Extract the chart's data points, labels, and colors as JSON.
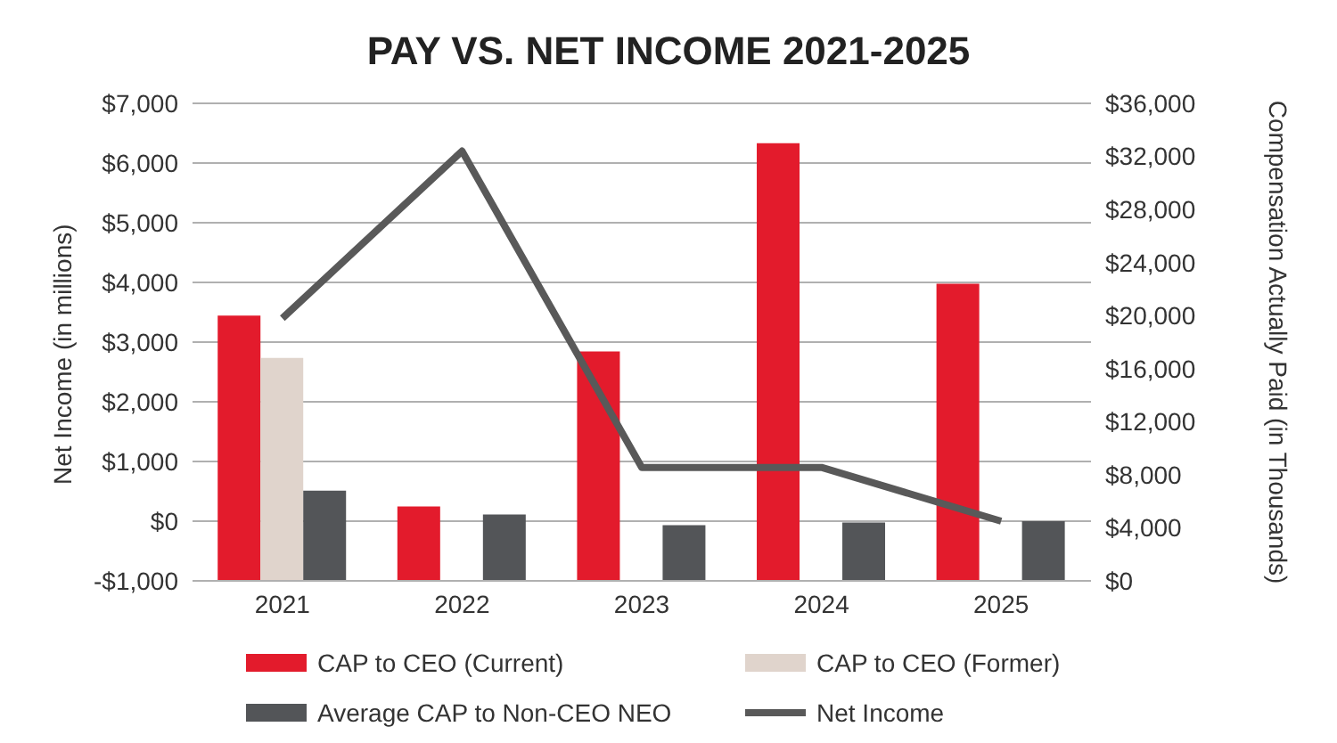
{
  "chart_data": {
    "type": "bar",
    "title": "PAY VS. NET INCOME 2021-2025",
    "ylabel": "Net Income (in millions)",
    "y2label": "Compensation Actually Paid (in Thousands)",
    "categories": [
      "2021",
      "2022",
      "2023",
      "2024",
      "2025"
    ],
    "series": [
      {
        "name": "CAP to CEO (Current)",
        "axis": "y2",
        "color": "#e31b2c",
        "values": [
          20000,
          5600,
          17300,
          33000,
          22400
        ]
      },
      {
        "name": "CAP to CEO (Former)",
        "axis": "y2",
        "color": "#e0d4cc",
        "values": [
          16800,
          null,
          null,
          null,
          null
        ]
      },
      {
        "name": "Average CAP to Non-CEO NEO",
        "axis": "y2",
        "color": "#535558",
        "values": [
          6800,
          5000,
          4200,
          4400,
          4500
        ]
      },
      {
        "name": "Net Income",
        "type": "line",
        "axis": "y",
        "color": "#595959",
        "values": [
          3400,
          6200,
          900,
          900,
          0
        ]
      }
    ],
    "ylim": [
      -1000,
      7000
    ],
    "yticks": [
      {
        "value": -1000,
        "label": "-$1,000"
      },
      {
        "value": 0,
        "label": "$0"
      },
      {
        "value": 1000,
        "label": "$1,000"
      },
      {
        "value": 2000,
        "label": "$2,000"
      },
      {
        "value": 3000,
        "label": "$3,000"
      },
      {
        "value": 4000,
        "label": "$4,000"
      },
      {
        "value": 5000,
        "label": "$5,000"
      },
      {
        "value": 6000,
        "label": "$6,000"
      },
      {
        "value": 7000,
        "label": "$7,000"
      }
    ],
    "y2lim": [
      0,
      36000
    ],
    "y2ticks": [
      {
        "value": 0,
        "label": "$0"
      },
      {
        "value": 4000,
        "label": "$4,000"
      },
      {
        "value": 8000,
        "label": "$8,000"
      },
      {
        "value": 12000,
        "label": "$12,000"
      },
      {
        "value": 16000,
        "label": "$16,000"
      },
      {
        "value": 20000,
        "label": "$20,000"
      },
      {
        "value": 24000,
        "label": "$24,000"
      },
      {
        "value": 28000,
        "label": "$28,000"
      },
      {
        "value": 32000,
        "label": "$32,000"
      },
      {
        "value": 36000,
        "label": "$36,000"
      }
    ],
    "grid": "y",
    "legend": "bottom",
    "marker": "none",
    "line_style": "solid"
  }
}
